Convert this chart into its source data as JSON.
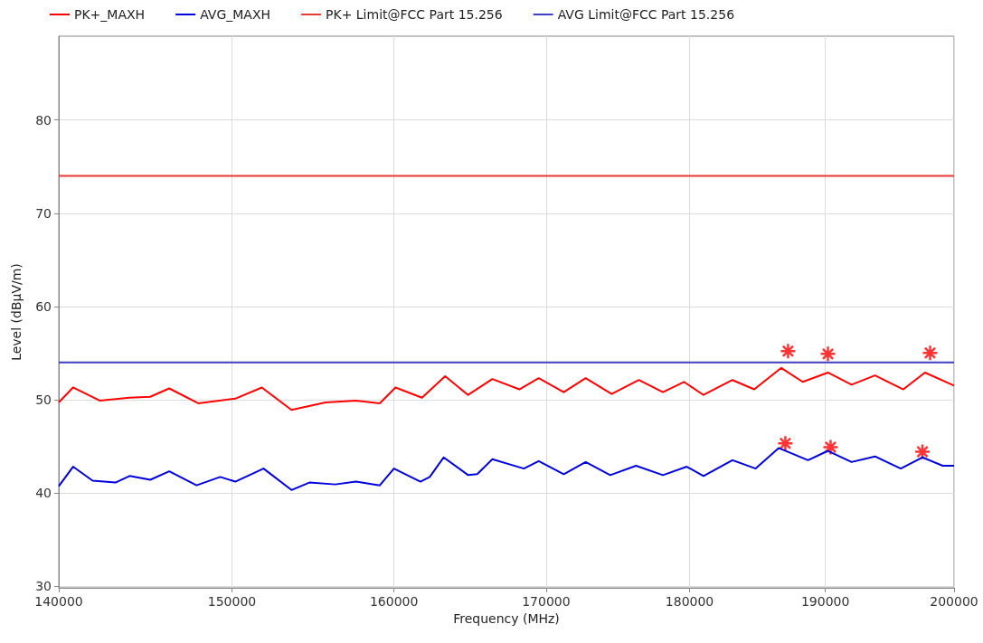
{
  "chart_data": {
    "type": "line",
    "xlabel": "Frequency (MHz)",
    "ylabel": "Level (dBµV/m)",
    "log": "x",
    "xlim": [
      140000,
      200000
    ],
    "xticks": [
      140000,
      150000,
      160000,
      170000,
      180000,
      190000,
      200000
    ],
    "ylim": [
      29.8,
      89
    ],
    "yticks": [
      30,
      40,
      50,
      60,
      70,
      80
    ],
    "grid": true,
    "legend": "top left",
    "series": [
      {
        "name": "PK+_MAXH",
        "color": "#ff0000",
        "x": [
          140000,
          140800,
          142300,
          144000,
          145200,
          146300,
          148000,
          150200,
          151800,
          153600,
          155700,
          157600,
          159100,
          160100,
          161800,
          163300,
          164800,
          166400,
          168200,
          169500,
          171200,
          172700,
          174500,
          176400,
          178100,
          179600,
          181000,
          183100,
          184700,
          186700,
          188300,
          190200,
          192000,
          193800,
          196000,
          197700,
          200000
        ],
        "values": [
          49.7,
          51.3,
          49.9,
          50.2,
          50.3,
          51.2,
          49.6,
          50.1,
          51.3,
          48.9,
          49.7,
          49.9,
          49.6,
          51.3,
          50.2,
          52.5,
          50.5,
          52.2,
          51.1,
          52.3,
          50.8,
          52.3,
          50.6,
          52.1,
          50.8,
          51.9,
          50.5,
          52.1,
          51.1,
          53.4,
          51.9,
          52.9,
          51.6,
          52.6,
          51.1,
          52.9,
          51.5
        ]
      },
      {
        "name": "AVG_MAXH",
        "color": "#0000dd",
        "x": [
          140000,
          140800,
          141900,
          143200,
          144000,
          145200,
          146300,
          147900,
          149300,
          150200,
          151900,
          153600,
          154700,
          156300,
          157600,
          159100,
          160000,
          161700,
          162300,
          163200,
          164800,
          165400,
          166400,
          168500,
          169500,
          171200,
          172700,
          174400,
          176200,
          178100,
          179800,
          181000,
          183100,
          184800,
          186500,
          188700,
          190200,
          192000,
          193800,
          195800,
          197500,
          199100,
          200000
        ],
        "values": [
          40.7,
          42.8,
          41.3,
          41.1,
          41.8,
          41.4,
          42.3,
          40.8,
          41.7,
          41.2,
          42.6,
          40.3,
          41.1,
          40.9,
          41.2,
          40.8,
          42.6,
          41.2,
          41.7,
          43.8,
          41.9,
          42.0,
          43.6,
          42.6,
          43.4,
          42.0,
          43.3,
          41.9,
          42.9,
          41.9,
          42.8,
          41.8,
          43.5,
          42.6,
          44.8,
          43.5,
          44.5,
          43.3,
          43.9,
          42.6,
          43.8,
          42.9,
          42.9
        ]
      },
      {
        "name": "PK+ Limit@FCC Part 15.256",
        "color": "#e53935",
        "x": [
          140000,
          200000
        ],
        "values": [
          74,
          74
        ]
      },
      {
        "name": "AVG Limit@FCC Part 15.256",
        "color": "#3f3fc4",
        "x": [
          140000,
          200000
        ],
        "values": [
          54,
          54
        ]
      },
      {
        "type": "scatter",
        "marker": "cross",
        "color": "#ff0000",
        "x": [
          187200,
          190200,
          198100
        ],
        "values": [
          55.2,
          54.9,
          55.0
        ]
      },
      {
        "type": "scatter",
        "marker": "cross",
        "color": "#ff0000",
        "x": [
          187000,
          190400,
          197500
        ],
        "values": [
          45.3,
          44.9,
          44.4
        ]
      }
    ]
  }
}
